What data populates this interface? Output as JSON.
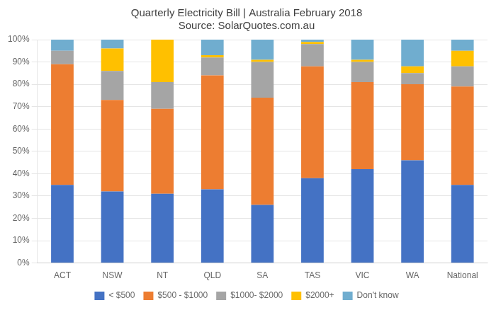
{
  "chart_data": {
    "type": "bar",
    "title": "Quarterly Electricity Bill | Australia February 2018",
    "subtitle": "Source: SolarQuotes.com.au",
    "categories": [
      "ACT",
      "NSW",
      "NT",
      "QLD",
      "SA",
      "TAS",
      "VIC",
      "WA",
      "National"
    ],
    "series": [
      {
        "name": "< $500",
        "color": "#4472C4",
        "values": [
          35,
          32,
          31,
          33,
          26,
          38,
          42,
          46,
          35
        ]
      },
      {
        "name": "$500 - $1000",
        "color": "#ED7D31",
        "values": [
          54,
          41,
          38,
          51,
          48,
          50,
          39,
          34,
          44
        ]
      },
      {
        "name": "$1000- $2000",
        "color": "#A5A5A5",
        "values": [
          6,
          13,
          12,
          8,
          16,
          10,
          9,
          5,
          9
        ]
      },
      {
        "name": "$2000+",
        "color": "#FFC000",
        "values": [
          0,
          10,
          19,
          1,
          1,
          1,
          1,
          3,
          7
        ]
      },
      {
        "name": "Don't know",
        "color": "#70ADCF",
        "values": [
          5,
          4,
          0,
          7,
          9,
          1,
          9,
          12,
          5
        ]
      }
    ],
    "stacked": true,
    "ylim": [
      0,
      100
    ],
    "yticks": [
      {
        "value": 0,
        "label": "0%"
      },
      {
        "value": 10,
        "label": "10%"
      },
      {
        "value": 20,
        "label": "20%"
      },
      {
        "value": 30,
        "label": "30%"
      },
      {
        "value": 40,
        "label": "40%"
      },
      {
        "value": 50,
        "label": "50%"
      },
      {
        "value": 60,
        "label": "60%"
      },
      {
        "value": 70,
        "label": "70%"
      },
      {
        "value": 80,
        "label": "80%"
      },
      {
        "value": 90,
        "label": "90%"
      },
      {
        "value": 100,
        "label": "100%"
      }
    ],
    "grid": true,
    "legend": "bottom"
  }
}
